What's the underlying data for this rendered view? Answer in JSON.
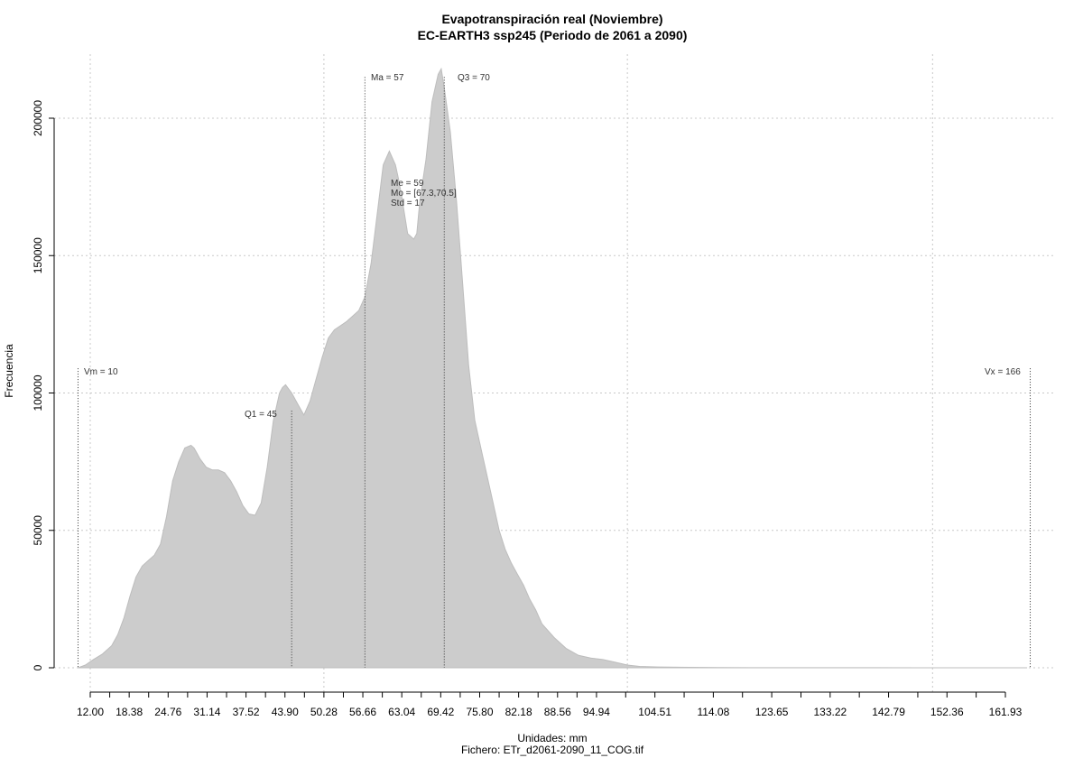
{
  "chart_data": {
    "type": "area",
    "title": "Evapotranspiración real (Noviembre)",
    "subtitle": "EC-EARTH3 ssp245 (Periodo de 2061 a 2090)",
    "xlabel": "Unidades: mm",
    "ylabel": "Frecuencia",
    "footer": "Fichero: ETr_d2061-2090_11_COG.tif",
    "xlim": [
      7.3,
      170.1
    ],
    "ylim": [
      0,
      218000
    ],
    "grid": true,
    "x_tick_labels": [
      "12.00",
      "18.38",
      "24.76",
      "31.14",
      "37.52",
      "43.90",
      "50.28",
      "56.66",
      "63.04",
      "69.42",
      "75.80",
      "82.18",
      "88.56",
      "94.94",
      "104.51",
      "114.08",
      "123.65",
      "133.22",
      "142.79",
      "152.36",
      "161.93"
    ],
    "x_minor_ticks": [
      12.0,
      15.19,
      18.38,
      21.57,
      24.76,
      27.95,
      31.14,
      34.33,
      37.52,
      40.71,
      43.9,
      47.09,
      50.28,
      53.47,
      56.66,
      59.85,
      63.04,
      66.23,
      69.42,
      72.61,
      75.8,
      78.99,
      82.18,
      85.37,
      88.56,
      91.75,
      94.94,
      99.72,
      104.51,
      109.3,
      114.08,
      118.86,
      123.65,
      128.44,
      133.22,
      138.0,
      142.79,
      147.58,
      152.36,
      157.14,
      161.93
    ],
    "y_ticks": [
      0,
      50000,
      100000,
      150000,
      200000
    ],
    "y_tick_labels": [
      "0",
      "50000",
      "100000",
      "150000",
      "200000"
    ],
    "grid_x": [
      12.0,
      50.28,
      100.0,
      150.0
    ],
    "series": [
      {
        "x": [
          10.0,
          11.2,
          12.5,
          14.0,
          15.5,
          16.5,
          17.5,
          18.5,
          19.5,
          20.5,
          21.5,
          22.0,
          22.5,
          23.5,
          24.5,
          25.5,
          26.5,
          27.5,
          28.5,
          29.0,
          29.5,
          30.0,
          31.0,
          32.0,
          33.0,
          34.0,
          35.0,
          36.0,
          37.0,
          38.0,
          39.0,
          40.0,
          41.0,
          42.0,
          43.0,
          43.5,
          44.0,
          45.0,
          46.0,
          47.0,
          48.0,
          49.0,
          50.0,
          51.0,
          52.0,
          53.0,
          54.0,
          55.0,
          56.0,
          57.0,
          58.0,
          59.0,
          60.0,
          61.0,
          62.0,
          62.5,
          63.0,
          64.0,
          65.0,
          65.5,
          66.0,
          67.0,
          68.0,
          69.0,
          69.5,
          70.0,
          71.0,
          72.0,
          73.0,
          74.0,
          75.0,
          76.0,
          77.0,
          78.0,
          79.0,
          80.0,
          81.0,
          82.0,
          83.0,
          84.0,
          85.0,
          86.0,
          88.0,
          90.0,
          92.0,
          94.0,
          96.0,
          98.0,
          100.0,
          102.0,
          105.0,
          110.0,
          115.0,
          120.0,
          130.0,
          140.0,
          150.0,
          160.0,
          165.5
        ],
        "y": [
          0,
          1000,
          3000,
          5000,
          8000,
          12000,
          18000,
          26000,
          33000,
          37000,
          39000,
          40000,
          41000,
          45000,
          55000,
          68000,
          75000,
          80000,
          81000,
          80000,
          78000,
          76000,
          73000,
          72000,
          72000,
          71000,
          68000,
          64000,
          59000,
          56000,
          55500,
          60000,
          73000,
          90000,
          100000,
          102000,
          103000,
          100000,
          96000,
          92000,
          97000,
          105000,
          113000,
          120000,
          123000,
          124500,
          126000,
          128000,
          130000,
          135000,
          147000,
          165000,
          183000,
          188000,
          183000,
          178000,
          172000,
          158000,
          156000,
          158000,
          170000,
          185000,
          206000,
          216000,
          218000,
          211000,
          195000,
          170000,
          140000,
          110000,
          90000,
          80000,
          70000,
          60000,
          50000,
          43000,
          38000,
          34000,
          30000,
          25000,
          21000,
          16000,
          11000,
          7000,
          4500,
          3500,
          3000,
          2000,
          1000,
          500,
          300,
          150,
          80,
          40,
          25,
          20,
          15,
          10,
          5
        ]
      }
    ],
    "annotations": {
      "vm": {
        "x": 10,
        "label": "Vm = 10"
      },
      "q1": {
        "x": 45,
        "label": "Q1 = 45"
      },
      "ma": {
        "x": 57,
        "label": "Ma = 57"
      },
      "q3": {
        "x": 70,
        "label": "Q3 = 70"
      },
      "vx": {
        "x": 166,
        "label": "Vx = 166"
      },
      "me": {
        "label": "Me = 59"
      },
      "mo": {
        "label": "Mo = [67.3,70.5]"
      },
      "std": {
        "label": "Std = 17"
      }
    },
    "fill_color": "#cccccc",
    "stroke_color": "#bdbdbd"
  }
}
